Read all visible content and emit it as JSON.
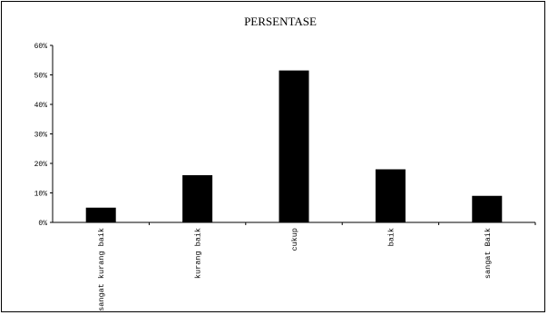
{
  "chart_data": {
    "type": "bar",
    "title": "PERSENTASE",
    "xlabel": "",
    "ylabel": "",
    "categories": [
      "sangat kurang baik",
      "kurang baik",
      "cukup",
      "baik",
      "sangat Baik"
    ],
    "values": [
      5,
      16,
      51.5,
      18,
      9
    ],
    "value_format": "percent",
    "ylim": [
      0,
      60
    ],
    "yticks": [
      0,
      10,
      20,
      30,
      40,
      50,
      60
    ],
    "ytick_labels": [
      "0%",
      "10%",
      "20%",
      "30%",
      "40%",
      "50%",
      "60%"
    ],
    "grid": false,
    "legend": "none",
    "bar_color": "#000000"
  }
}
